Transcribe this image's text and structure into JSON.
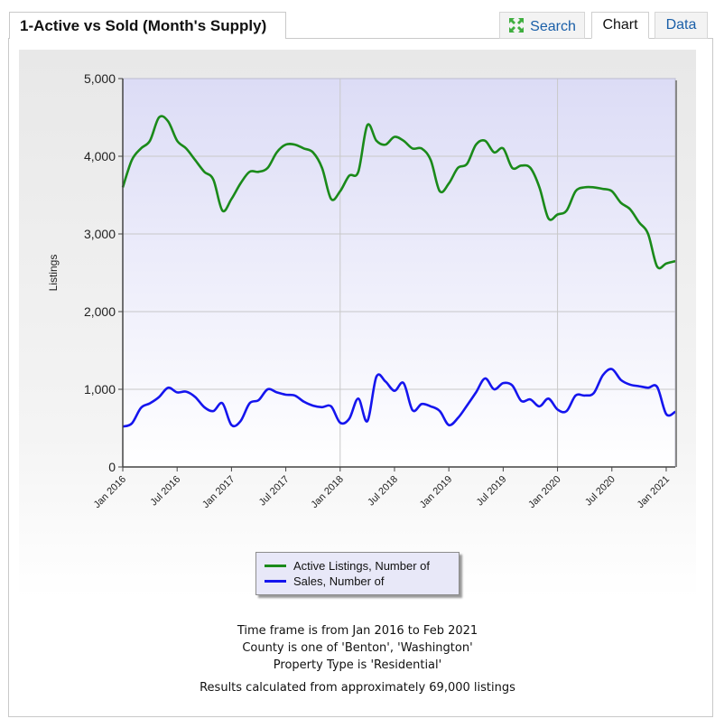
{
  "header": {
    "title": "1-Active vs Sold (Month's Supply)",
    "tabs": [
      {
        "label": "Search",
        "icon": "expand-arrows-icon"
      },
      {
        "label": "Chart"
      },
      {
        "label": "Data"
      }
    ],
    "active_tab": "Chart"
  },
  "colors": {
    "active_series": "#1a8a1a",
    "sales_series": "#1515ee",
    "plot_background_top": "#e2e2f8",
    "plot_background_bottom": "#ffffff",
    "link": "#1a5fa8"
  },
  "chart_data": {
    "type": "line",
    "ylabel": "Listings",
    "xlabel": "",
    "ylim": [
      0,
      5000
    ],
    "yticks": [
      "0",
      "1,000",
      "2,000",
      "3,000",
      "4,000",
      "5,000"
    ],
    "xticks": [
      "Jan 2016",
      "Jul 2016",
      "Jan 2017",
      "Jul 2017",
      "Jan 2018",
      "Jul 2018",
      "Jan 2019",
      "Jul 2019",
      "Jan 2020",
      "Jul 2020",
      "Jan 2021"
    ],
    "grid": true,
    "legend_position": "bottom-center",
    "x": [
      "Jan 2016",
      "Feb 2016",
      "Mar 2016",
      "Apr 2016",
      "May 2016",
      "Jun 2016",
      "Jul 2016",
      "Aug 2016",
      "Sep 2016",
      "Oct 2016",
      "Nov 2016",
      "Dec 2016",
      "Jan 2017",
      "Feb 2017",
      "Mar 2017",
      "Apr 2017",
      "May 2017",
      "Jun 2017",
      "Jul 2017",
      "Aug 2017",
      "Sep 2017",
      "Oct 2017",
      "Nov 2017",
      "Dec 2017",
      "Jan 2018",
      "Feb 2018",
      "Mar 2018",
      "Apr 2018",
      "May 2018",
      "Jun 2018",
      "Jul 2018",
      "Aug 2018",
      "Sep 2018",
      "Oct 2018",
      "Nov 2018",
      "Dec 2018",
      "Jan 2019",
      "Feb 2019",
      "Mar 2019",
      "Apr 2019",
      "May 2019",
      "Jun 2019",
      "Jul 2019",
      "Aug 2019",
      "Sep 2019",
      "Oct 2019",
      "Nov 2019",
      "Dec 2019",
      "Jan 2020",
      "Feb 2020",
      "Mar 2020",
      "Apr 2020",
      "May 2020",
      "Jun 2020",
      "Jul 2020",
      "Aug 2020",
      "Sep 2020",
      "Oct 2020",
      "Nov 2020",
      "Dec 2020",
      "Jan 2021",
      "Feb 2021"
    ],
    "series": [
      {
        "name": "Active Listings, Number of",
        "values": [
          3600,
          3950,
          4100,
          4200,
          4500,
          4450,
          4200,
          4100,
          3950,
          3800,
          3700,
          3300,
          3450,
          3650,
          3800,
          3800,
          3850,
          4050,
          4150,
          4150,
          4100,
          4050,
          3850,
          3450,
          3550,
          3750,
          3800,
          4400,
          4200,
          4150,
          4250,
          4200,
          4100,
          4100,
          3950,
          3550,
          3650,
          3850,
          3900,
          4150,
          4200,
          4050,
          4100,
          3850,
          3880,
          3850,
          3600,
          3200,
          3250,
          3300,
          3550,
          3600,
          3600,
          3580,
          3550,
          3400,
          3320,
          3150,
          3000,
          2580,
          2620,
          2650
        ]
      },
      {
        "name": "Sales, Number of",
        "values": [
          520,
          560,
          760,
          820,
          900,
          1020,
          960,
          970,
          900,
          770,
          720,
          820,
          540,
          590,
          820,
          860,
          1000,
          960,
          930,
          920,
          840,
          790,
          770,
          780,
          570,
          620,
          880,
          590,
          1160,
          1100,
          980,
          1080,
          730,
          810,
          780,
          720,
          540,
          630,
          790,
          960,
          1140,
          1000,
          1080,
          1050,
          850,
          870,
          780,
          880,
          740,
          720,
          920,
          920,
          950,
          1180,
          1260,
          1120,
          1060,
          1040,
          1020,
          1030,
          680,
          710
        ]
      }
    ]
  },
  "footer": {
    "lines": [
      "Time frame is from Jan 2016 to Feb 2021",
      "County is one of 'Benton', 'Washington'",
      "Property Type is 'Residential'"
    ],
    "summary": "Results calculated from approximately 69,000 listings"
  }
}
